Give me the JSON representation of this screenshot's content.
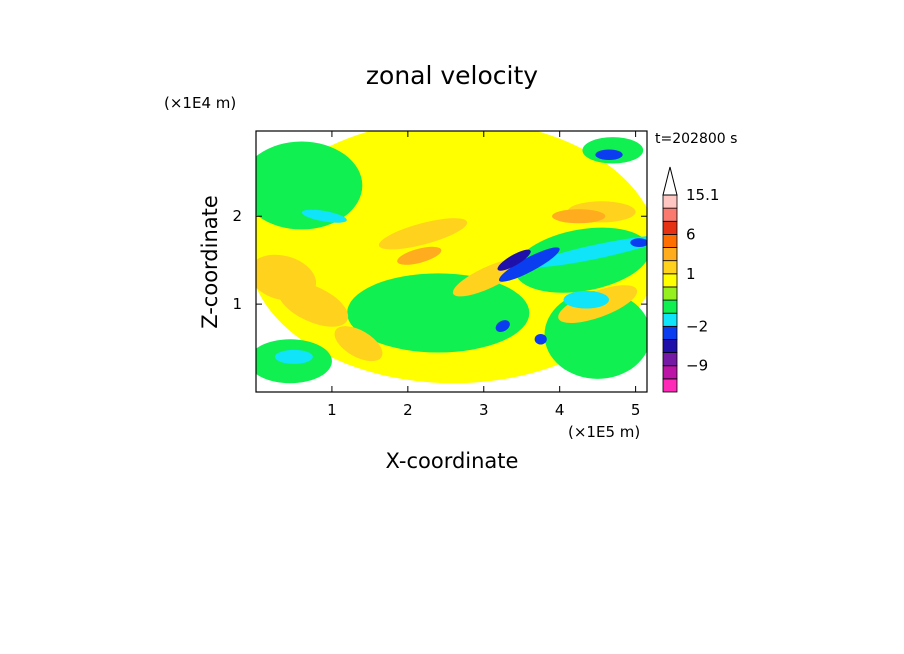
{
  "chart_data": {
    "type": "heatmap",
    "title": "zonal velocity",
    "time_label": "t=202800 s",
    "xlabel": "X-coordinate",
    "ylabel": "Z-coordinate",
    "x_unit": "(×1E5 m)",
    "y_unit": "(×1E4 m)",
    "xlim": [
      0.0,
      5.15
    ],
    "ylim": [
      0.0,
      2.97
    ],
    "x_ticks": [
      1,
      2,
      3,
      4,
      5
    ],
    "y_ticks": [
      1,
      2
    ],
    "grid": false,
    "legend_position": "right",
    "colorbar_labels": [
      {
        "value": 15.1,
        "text": "15.1"
      },
      {
        "value": 6,
        "text": "6"
      },
      {
        "value": 1,
        "text": "1"
      },
      {
        "value": -2,
        "text": "−2"
      },
      {
        "value": -9,
        "text": "−9"
      }
    ],
    "colorbar": [
      {
        "color": "#ff2ab8",
        "min": -15.1,
        "max": -12
      },
      {
        "color": "#bb14a6",
        "min": -12,
        "max": -9
      },
      {
        "color": "#741aa4",
        "min": -9,
        "max": -6
      },
      {
        "color": "#1e10a8",
        "min": -6,
        "max": -4
      },
      {
        "color": "#0a3cf0",
        "min": -4,
        "max": -2
      },
      {
        "color": "#10e4f8",
        "min": -2,
        "max": -1
      },
      {
        "color": "#10f050",
        "min": -1,
        "max": 0
      },
      {
        "color": "#96f020",
        "min": 0,
        "max": 0.5
      },
      {
        "color": "#ffff00",
        "min": 0.5,
        "max": 1
      },
      {
        "color": "#ffd21e",
        "min": 1,
        "max": 2
      },
      {
        "color": "#ffac1e",
        "min": 2,
        "max": 4
      },
      {
        "color": "#ff6e00",
        "min": 4,
        "max": 6
      },
      {
        "color": "#e63214",
        "min": 6,
        "max": 9
      },
      {
        "color": "#fa7a70",
        "min": 9,
        "max": 12
      },
      {
        "color": "#ffc6c2",
        "min": 12,
        "max": 15.1
      }
    ],
    "field_regions": [
      {
        "x": 2.6,
        "y": 1.6,
        "rx": 2.7,
        "ry": 1.5,
        "angle": 0,
        "value": 0.7
      },
      {
        "x": 0.6,
        "y": 2.35,
        "rx": 0.8,
        "ry": 0.5,
        "angle": 0,
        "value": -0.5
      },
      {
        "x": 2.4,
        "y": 0.9,
        "rx": 1.2,
        "ry": 0.45,
        "angle": 0,
        "value": -0.5
      },
      {
        "x": 4.5,
        "y": 0.65,
        "rx": 0.7,
        "ry": 0.5,
        "angle": 0,
        "value": -0.5
      },
      {
        "x": 4.3,
        "y": 1.5,
        "rx": 0.9,
        "ry": 0.35,
        "angle": 10,
        "value": -0.5
      },
      {
        "x": 0.45,
        "y": 0.35,
        "rx": 0.55,
        "ry": 0.25,
        "angle": 0,
        "value": -0.5
      },
      {
        "x": 0.35,
        "y": 1.3,
        "rx": 0.45,
        "ry": 0.25,
        "angle": -15,
        "value": 1.5
      },
      {
        "x": 0.75,
        "y": 1.0,
        "rx": 0.5,
        "ry": 0.2,
        "angle": -25,
        "value": 1.5
      },
      {
        "x": 1.35,
        "y": 0.55,
        "rx": 0.35,
        "ry": 0.15,
        "angle": -30,
        "value": 1.5
      },
      {
        "x": 3.05,
        "y": 1.3,
        "rx": 0.5,
        "ry": 0.12,
        "angle": 25,
        "value": 1.5
      },
      {
        "x": 4.5,
        "y": 1.0,
        "rx": 0.55,
        "ry": 0.15,
        "angle": 20,
        "value": 1.5
      },
      {
        "x": 4.55,
        "y": 2.05,
        "rx": 0.45,
        "ry": 0.12,
        "angle": 0,
        "value": 1.5
      },
      {
        "x": 2.2,
        "y": 1.8,
        "rx": 0.6,
        "ry": 0.12,
        "angle": 15,
        "value": 1.5
      },
      {
        "x": 2.15,
        "y": 1.55,
        "rx": 0.3,
        "ry": 0.08,
        "angle": 15,
        "value": 3
      },
      {
        "x": 4.25,
        "y": 2.0,
        "rx": 0.35,
        "ry": 0.08,
        "angle": 0,
        "value": 3
      },
      {
        "x": 2.6,
        "y": 2.5,
        "rx": 0.4,
        "ry": 0.25,
        "angle": 0,
        "value": 0.7
      },
      {
        "x": 4.7,
        "y": 2.75,
        "rx": 0.4,
        "ry": 0.15,
        "angle": 0,
        "value": -0.5
      },
      {
        "x": 4.5,
        "y": 1.6,
        "rx": 0.9,
        "ry": 0.08,
        "angle": 12,
        "value": -1.5
      },
      {
        "x": 3.6,
        "y": 1.45,
        "rx": 0.45,
        "ry": 0.08,
        "angle": 28,
        "value": -3
      },
      {
        "x": 3.4,
        "y": 1.5,
        "rx": 0.25,
        "ry": 0.06,
        "angle": 30,
        "value": -5
      },
      {
        "x": 4.65,
        "y": 2.7,
        "rx": 0.18,
        "ry": 0.06,
        "angle": 0,
        "value": -3
      },
      {
        "x": 5.05,
        "y": 1.7,
        "rx": 0.12,
        "ry": 0.05,
        "angle": 0,
        "value": -3
      },
      {
        "x": 3.25,
        "y": 0.75,
        "rx": 0.1,
        "ry": 0.06,
        "angle": 30,
        "value": -3
      },
      {
        "x": 3.75,
        "y": 0.6,
        "rx": 0.08,
        "ry": 0.06,
        "angle": 0,
        "value": -3
      },
      {
        "x": 0.9,
        "y": 2.0,
        "rx": 0.3,
        "ry": 0.06,
        "angle": -10,
        "value": -1.5
      },
      {
        "x": 0.5,
        "y": 0.4,
        "rx": 0.25,
        "ry": 0.08,
        "angle": 0,
        "value": -1.5
      },
      {
        "x": 4.35,
        "y": 1.05,
        "rx": 0.3,
        "ry": 0.1,
        "angle": 0,
        "value": -1.5
      }
    ]
  }
}
